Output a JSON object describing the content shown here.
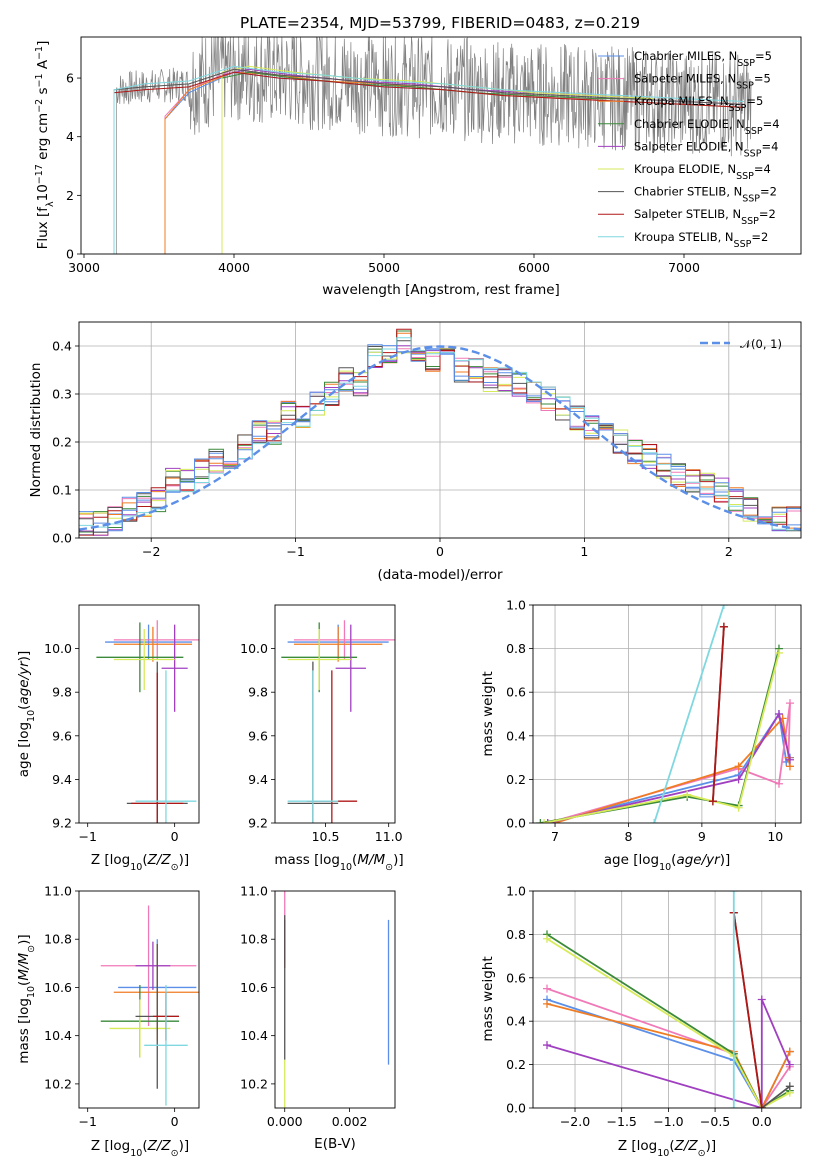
{
  "colors": {
    "chabrier_miles": "#5b8fe8",
    "salpeter_miles": "#f07ab8",
    "kroupa_miles": "#f07d24",
    "chabrier_elodie": "#3a8a3a",
    "salpeter_elodie": "#a040c0",
    "kroupa_elodie": "#d7ea5a",
    "chabrier_stelib": "#555555",
    "salpeter_stelib": "#b01818",
    "kroupa_stelib": "#7fd8e0",
    "spectrum": "#808080",
    "normal_curve": "#5b8fe8"
  },
  "chart_data": [
    {
      "type": "line",
      "title": "PLATE=2354, MJD=53799, FIBERID=0483, z=0.219",
      "xlabel": "wavelength [Angstrom, rest frame]",
      "ylabel": "Flux [f_λ 10^-17 erg cm^-2 s^-1 A^-1]",
      "xlim": [
        2980,
        7780
      ],
      "ylim": [
        0,
        7.4
      ],
      "xticks": [
        "3000",
        "4000",
        "5000",
        "6000",
        "7000"
      ],
      "yticks": [
        "0",
        "2",
        "4",
        "6"
      ],
      "legend_position": "upper-right",
      "series": [
        {
          "name": "Chabrier MILES, N_SSP=5",
          "key": "chabrier_miles",
          "x": [
            3540,
            3700,
            4000,
            4300,
            4600,
            5000,
            5400,
            5800,
            6200,
            6600,
            7000,
            7400
          ],
          "y": [
            4.6,
            5.5,
            6.2,
            6.0,
            5.9,
            5.7,
            5.6,
            5.4,
            5.3,
            5.2,
            5.1,
            5.0
          ]
        },
        {
          "name": "Salpeter MILES, N_SSP=5",
          "key": "salpeter_miles",
          "x": [
            3540,
            3700,
            4000,
            4300,
            4600,
            5000,
            5400,
            5800,
            6200,
            6600,
            7000,
            7400
          ],
          "y": [
            4.7,
            5.6,
            6.3,
            6.1,
            6.0,
            5.8,
            5.7,
            5.5,
            5.3,
            5.3,
            5.2,
            5.1
          ]
        },
        {
          "name": "Kroupa MILES, N_SSP=5",
          "key": "kroupa_miles",
          "x": [
            3540,
            3700,
            4000,
            4300,
            4600,
            5000,
            5400,
            5800,
            6200,
            6600,
            7000,
            7400
          ],
          "y": [
            4.6,
            5.6,
            6.2,
            6.1,
            5.9,
            5.8,
            5.6,
            5.4,
            5.3,
            5.2,
            5.1,
            5.0
          ]
        },
        {
          "name": "Chabrier ELODIE, N_SSP=4",
          "key": "chabrier_elodie",
          "x": [
            3920,
            4100,
            4400,
            4800,
            5200,
            5600,
            6000,
            6400,
            6800
          ],
          "y": [
            6.0,
            6.2,
            6.0,
            5.8,
            5.7,
            5.5,
            5.4,
            5.3,
            5.3
          ]
        },
        {
          "name": "Salpeter ELODIE, N_SSP=4",
          "key": "salpeter_elodie",
          "x": [
            3920,
            4100,
            4400,
            4800,
            5200,
            5600,
            6000,
            6400,
            6800
          ],
          "y": [
            6.1,
            6.3,
            6.1,
            5.9,
            5.8,
            5.6,
            5.5,
            5.4,
            5.3
          ]
        },
        {
          "name": "Kroupa ELODIE, N_SSP=4",
          "key": "kroupa_elodie",
          "x": [
            3920,
            4100,
            4400,
            4800,
            5200,
            5600,
            6000,
            6400,
            6800
          ],
          "y": [
            6.2,
            6.4,
            6.2,
            6.0,
            5.9,
            5.7,
            5.5,
            5.4,
            5.3
          ]
        },
        {
          "name": "Chabrier STELIB, N_SSP=2",
          "key": "chabrier_stelib",
          "x": [
            3200,
            3400,
            3700,
            4000,
            4300,
            4600,
            5000,
            5400,
            5800,
            6200,
            6600,
            7000,
            7400
          ],
          "y": [
            5.6,
            5.7,
            5.8,
            6.3,
            6.1,
            6.0,
            5.8,
            5.7,
            5.5,
            5.4,
            5.3,
            5.2,
            5.1
          ]
        },
        {
          "name": "Salpeter STELIB, N_SSP=2",
          "key": "salpeter_stelib",
          "x": [
            3200,
            3400,
            3700,
            4000,
            4300,
            4600,
            5000,
            5400,
            5800,
            6200,
            6600,
            7000,
            7400
          ],
          "y": [
            5.5,
            5.6,
            5.7,
            6.2,
            6.0,
            5.9,
            5.7,
            5.6,
            5.4,
            5.3,
            5.2,
            5.1,
            5.0
          ]
        },
        {
          "name": "Kroupa STELIB, N_SSP=2",
          "key": "kroupa_stelib",
          "x": [
            3200,
            3400,
            3700,
            4000,
            4300,
            4600,
            5000,
            5400,
            5800,
            6200,
            6600,
            7000,
            7400
          ],
          "y": [
            5.6,
            5.8,
            5.9,
            6.4,
            6.2,
            6.1,
            5.9,
            5.8,
            5.6,
            5.5,
            5.4,
            5.3,
            5.2
          ]
        }
      ]
    },
    {
      "type": "line",
      "xlabel": "(data-model)/error",
      "ylabel": "Normed distribution",
      "xlim": [
        -2.5,
        2.5
      ],
      "ylim": [
        0,
        0.45
      ],
      "xticks": [
        "−2",
        "−1",
        "0",
        "1",
        "2"
      ],
      "yticks": [
        "0.0",
        "0.1",
        "0.2",
        "0.3",
        "0.4"
      ],
      "grid": true,
      "legend": "𝒩(0, 1)",
      "legend_position": "upper-right",
      "bin_edges": [
        -2.5,
        -2.4,
        -2.3,
        -2.2,
        -2.1,
        -2.0,
        -1.9,
        -1.8,
        -1.7,
        -1.6,
        -1.5,
        -1.4,
        -1.3,
        -1.2,
        -1.1,
        -1.0,
        -0.9,
        -0.8,
        -0.7,
        -0.6,
        -0.5,
        -0.4,
        -0.3,
        -0.2,
        -0.1,
        0.0,
        0.1,
        0.2,
        0.3,
        0.4,
        0.5,
        0.6,
        0.7,
        0.8,
        0.9,
        1.0,
        1.1,
        1.2,
        1.3,
        1.4,
        1.5,
        1.6,
        1.7,
        1.8,
        1.9,
        2.0,
        2.1,
        2.2,
        2.3,
        2.4,
        2.5
      ],
      "hist": [
        0.03,
        0.03,
        0.04,
        0.06,
        0.07,
        0.08,
        0.12,
        0.12,
        0.14,
        0.16,
        0.17,
        0.19,
        0.22,
        0.22,
        0.26,
        0.25,
        0.28,
        0.3,
        0.33,
        0.32,
        0.38,
        0.39,
        0.41,
        0.38,
        0.37,
        0.37,
        0.35,
        0.35,
        0.33,
        0.33,
        0.32,
        0.3,
        0.29,
        0.27,
        0.25,
        0.23,
        0.22,
        0.2,
        0.18,
        0.17,
        0.15,
        0.13,
        0.12,
        0.11,
        0.1,
        0.08,
        0.06,
        0.05,
        0.04,
        0.04
      ],
      "normal_mean": 0,
      "normal_sigma": 1
    },
    {
      "type": "scatter",
      "xlabel": "Z [log10(Z/Z⊙)]",
      "ylabel": "age [log10(age/yr)]",
      "xlim": [
        -1.1,
        0.28
      ],
      "ylim": [
        9.2,
        10.2
      ],
      "xticks": [
        "−1",
        "0"
      ],
      "yticks": [
        "9.2",
        "9.4",
        "9.6",
        "9.8",
        "10.0"
      ],
      "points": [
        {
          "key": "chabrier_miles",
          "x": -0.3,
          "y": 10.03,
          "xerr": 0.5,
          "yerr": 0.08
        },
        {
          "key": "salpeter_miles",
          "x": -0.2,
          "y": 10.04,
          "xerr": 0.5,
          "yerr": 0.09
        },
        {
          "key": "kroupa_miles",
          "x": -0.25,
          "y": 10.02,
          "xerr": 0.45,
          "yerr": 0.08
        },
        {
          "key": "chabrier_elodie",
          "x": -0.4,
          "y": 9.96,
          "xerr": 0.5,
          "yerr": 0.16
        },
        {
          "key": "salpeter_elodie",
          "x": 0.0,
          "y": 9.91,
          "xerr": 0.15,
          "yerr": 0.2
        },
        {
          "key": "kroupa_elodie",
          "x": -0.35,
          "y": 9.95,
          "xerr": 0.35,
          "yerr": 0.14
        },
        {
          "key": "chabrier_stelib",
          "x": -0.2,
          "y": 9.29,
          "xerr": 0.35,
          "yerr": 0.65
        },
        {
          "key": "salpeter_stelib",
          "x": -0.2,
          "y": 9.29,
          "xerr": 0.3,
          "yerr": 0.6
        },
        {
          "key": "kroupa_stelib",
          "x": -0.1,
          "y": 9.3,
          "xerr": 0.35,
          "yerr": 0.6
        }
      ]
    },
    {
      "type": "scatter",
      "xlabel": "mass [log10(M/M⊙)]",
      "ylabel": "",
      "xlim": [
        10.1,
        11.05
      ],
      "ylim": [
        9.2,
        10.2
      ],
      "xticks": [
        "10.5",
        "11.0"
      ],
      "yticks": [
        "9.2",
        "9.4",
        "9.6",
        "9.8",
        "10.0"
      ],
      "points": [
        {
          "key": "chabrier_miles",
          "x": 10.6,
          "y": 10.03,
          "xerr": 0.4,
          "yerr": 0.08
        },
        {
          "key": "salpeter_miles",
          "x": 10.65,
          "y": 10.04,
          "xerr": 0.4,
          "yerr": 0.09
        },
        {
          "key": "kroupa_miles",
          "x": 10.6,
          "y": 10.02,
          "xerr": 0.35,
          "yerr": 0.08
        },
        {
          "key": "chabrier_elodie",
          "x": 10.45,
          "y": 9.96,
          "xerr": 0.3,
          "yerr": 0.16
        },
        {
          "key": "salpeter_elodie",
          "x": 10.7,
          "y": 9.91,
          "xerr": 0.12,
          "yerr": 0.2
        },
        {
          "key": "kroupa_elodie",
          "x": 10.45,
          "y": 9.95,
          "xerr": 0.25,
          "yerr": 0.14
        },
        {
          "key": "chabrier_stelib",
          "x": 10.4,
          "y": 9.29,
          "xerr": 0.2,
          "yerr": 0.65
        },
        {
          "key": "salpeter_stelib",
          "x": 10.55,
          "y": 9.3,
          "xerr": 0.2,
          "yerr": 0.6
        },
        {
          "key": "kroupa_stelib",
          "x": 10.4,
          "y": 9.3,
          "xerr": 0.2,
          "yerr": 0.6
        }
      ]
    },
    {
      "type": "line",
      "xlabel": "age [log10(age/yr)]",
      "ylabel": "mass weight",
      "xlim": [
        6.7,
        10.35
      ],
      "ylim": [
        0,
        1.0
      ],
      "xticks": [
        "7",
        "8",
        "9",
        "10"
      ],
      "yticks": [
        "0.0",
        "0.2",
        "0.4",
        "0.6",
        "0.8",
        "1.0"
      ],
      "grid": true,
      "series": [
        {
          "key": "chabrier_miles",
          "x": [
            6.9,
            9.5,
            10.05,
            10.15,
            10.2
          ],
          "y": [
            0.0,
            0.22,
            0.5,
            0.28,
            0.3
          ]
        },
        {
          "key": "salpeter_miles",
          "x": [
            6.9,
            9.5,
            10.05,
            10.2,
            10.18
          ],
          "y": [
            0.0,
            0.25,
            0.18,
            0.55,
            0.3
          ]
        },
        {
          "key": "kroupa_miles",
          "x": [
            7.0,
            9.5,
            10.1,
            10.2,
            10.18
          ],
          "y": [
            0.0,
            0.26,
            0.48,
            0.26,
            0.3
          ]
        },
        {
          "key": "chabrier_elodie",
          "x": [
            6.8,
            8.8,
            9.5,
            10.05
          ],
          "y": [
            0.0,
            0.12,
            0.08,
            0.8
          ]
        },
        {
          "key": "salpeter_elodie",
          "x": [
            6.9,
            9.5,
            10.05,
            10.2
          ],
          "y": [
            0.0,
            0.2,
            0.5,
            0.29
          ]
        },
        {
          "key": "kroupa_elodie",
          "x": [
            6.85,
            8.8,
            9.5,
            10.05
          ],
          "y": [
            0.0,
            0.13,
            0.07,
            0.78
          ]
        },
        {
          "key": "chabrier_stelib",
          "x": [
            9.15,
            9.3
          ],
          "y": [
            0.1,
            0.9
          ]
        },
        {
          "key": "salpeter_stelib",
          "x": [
            9.15,
            9.3
          ],
          "y": [
            0.1,
            0.9
          ]
        },
        {
          "key": "kroupa_stelib",
          "x": [
            8.35,
            9.3
          ],
          "y": [
            0.0,
            1.0
          ]
        }
      ]
    },
    {
      "type": "scatter",
      "xlabel": "Z [log10(Z/Z⊙)]",
      "ylabel": "mass [log10(M/M⊙)]",
      "xlim": [
        -1.1,
        0.28
      ],
      "ylim": [
        10.1,
        11.0
      ],
      "xticks": [
        "−1",
        "0"
      ],
      "yticks": [
        "10.2",
        "10.4",
        "10.6",
        "10.8",
        "11.0"
      ],
      "points": [
        {
          "key": "chabrier_miles",
          "x": -0.2,
          "y": 10.6,
          "xerr": 0.45,
          "yerr": 0.2
        },
        {
          "key": "salpeter_miles",
          "x": -0.3,
          "y": 10.69,
          "xerr": 0.55,
          "yerr": 0.25
        },
        {
          "key": "kroupa_miles",
          "x": -0.2,
          "y": 10.58,
          "xerr": 0.5,
          "yerr": 0.2
        },
        {
          "key": "chabrier_elodie",
          "x": -0.4,
          "y": 10.46,
          "xerr": 0.45,
          "yerr": 0.15
        },
        {
          "key": "salpeter_elodie",
          "x": -0.25,
          "y": 10.69,
          "xerr": 0.2,
          "yerr": 0.1
        },
        {
          "key": "kroupa_elodie",
          "x": -0.4,
          "y": 10.43,
          "xerr": 0.35,
          "yerr": 0.12
        },
        {
          "key": "chabrier_stelib",
          "x": -0.2,
          "y": 10.48,
          "xerr": 0.25,
          "yerr": 0.3
        },
        {
          "key": "salpeter_stelib",
          "x": -0.1,
          "y": 10.48,
          "xerr": 0.15,
          "yerr": 0.1
        },
        {
          "key": "kroupa_stelib",
          "x": -0.1,
          "y": 10.36,
          "xerr": 0.25,
          "yerr": 0.25
        }
      ]
    },
    {
      "type": "scatter",
      "xlabel": "E(B-V)",
      "ylabel": "",
      "xlim": [
        -0.0003,
        0.0034
      ],
      "ylim": [
        10.1,
        11.0
      ],
      "xticks": [
        "0.000",
        "0.002"
      ],
      "yticks": [
        "10.2",
        "10.4",
        "10.6",
        "10.8",
        "11.0"
      ],
      "points": [
        {
          "key": "chabrier_miles",
          "x": 0.0032,
          "y": 10.58,
          "xerr": 0,
          "yerr": 0.3
        },
        {
          "key": "salpeter_miles",
          "x": 0.0,
          "y": 10.85,
          "xerr": 0,
          "yerr": 0.15
        },
        {
          "key": "salpeter_stelib",
          "x": 0.0,
          "y": 10.78,
          "xerr": 0,
          "yerr": 0.1
        },
        {
          "key": "chabrier_stelib",
          "x": 0.0,
          "y": 10.6,
          "xerr": 0,
          "yerr": 0.3
        },
        {
          "key": "kroupa_elodie",
          "x": 0.0,
          "y": 10.2,
          "xerr": 0,
          "yerr": 0.1
        }
      ]
    },
    {
      "type": "line",
      "xlabel": "Z [log10(Z/Z⊙)]",
      "ylabel": "mass weight",
      "xlim": [
        -2.45,
        0.42
      ],
      "ylim": [
        0,
        1.0
      ],
      "xticks": [
        "−2.0",
        "−1.5",
        "−1.0",
        "−0.5",
        "0.0"
      ],
      "yticks": [
        "0.0",
        "0.2",
        "0.4",
        "0.6",
        "0.8",
        "1.0"
      ],
      "grid": true,
      "series": [
        {
          "key": "chabrier_miles",
          "x": [
            -2.3,
            -0.3,
            0.0,
            0.3
          ],
          "y": [
            0.5,
            0.22,
            0.0,
            0.26
          ]
        },
        {
          "key": "salpeter_miles",
          "x": [
            -2.3,
            -0.3,
            0.0,
            0.3
          ],
          "y": [
            0.55,
            0.25,
            0.0,
            0.19
          ]
        },
        {
          "key": "kroupa_miles",
          "x": [
            -2.3,
            -0.3,
            0.0,
            0.3
          ],
          "y": [
            0.48,
            0.26,
            0.0,
            0.26
          ]
        },
        {
          "key": "chabrier_elodie",
          "x": [
            -2.3,
            -0.3,
            0.0,
            0.3
          ],
          "y": [
            0.8,
            0.25,
            0.0,
            0.08
          ]
        },
        {
          "key": "salpeter_elodie",
          "x": [
            -2.3,
            0.0,
            0.0,
            0.3
          ],
          "y": [
            0.29,
            0.0,
            0.5,
            0.2
          ]
        },
        {
          "key": "kroupa_elodie",
          "x": [
            -2.3,
            -0.3,
            0.0,
            0.3
          ],
          "y": [
            0.78,
            0.24,
            0.0,
            0.07
          ]
        },
        {
          "key": "chabrier_stelib",
          "x": [
            -0.3,
            0.0,
            0.3
          ],
          "y": [
            0.9,
            0.0,
            0.1
          ]
        },
        {
          "key": "salpeter_stelib",
          "x": [
            -0.3,
            0.0
          ],
          "y": [
            0.9,
            0.0
          ]
        },
        {
          "key": "kroupa_stelib",
          "x": [
            -0.3,
            -0.3
          ],
          "y": [
            0.0,
            1.0
          ]
        }
      ]
    }
  ]
}
